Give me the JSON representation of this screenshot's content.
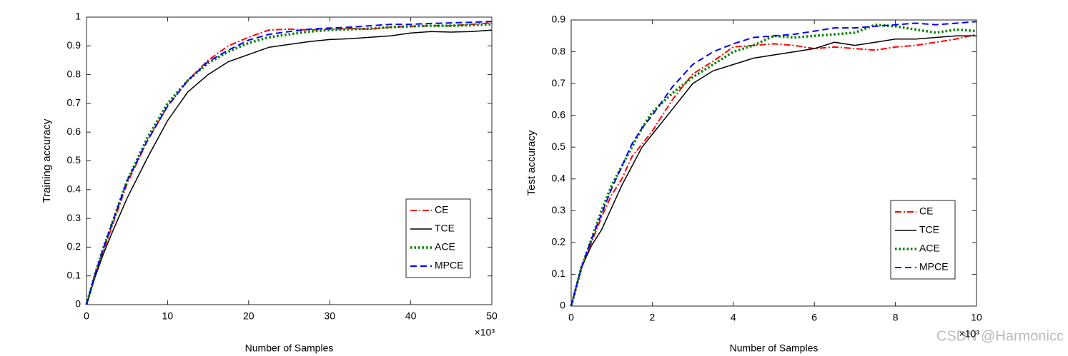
{
  "chart_data": [
    {
      "type": "line",
      "xlabel": "Number of Samples",
      "ylabel": "Training accuracy",
      "x_exponent_label": "×10³",
      "x": [
        0,
        1,
        2,
        3,
        5,
        7.5,
        10,
        12.5,
        15,
        17.5,
        20,
        22.5,
        25,
        27.5,
        30,
        32.5,
        35,
        37.5,
        40,
        42.5,
        45,
        47.5,
        50
      ],
      "xlim": [
        0,
        50
      ],
      "xticks": [
        0,
        10,
        20,
        30,
        40,
        50
      ],
      "ylim": [
        0,
        1
      ],
      "yticks": [
        0,
        0.1,
        0.2,
        0.3,
        0.4,
        0.5,
        0.6,
        0.7,
        0.8,
        0.9,
        1
      ],
      "legend": "lower right",
      "series": [
        {
          "name": "CE",
          "color": "#ff0000",
          "style": "dashdot",
          "values": [
            0,
            0.1,
            0.18,
            0.26,
            0.42,
            0.57,
            0.69,
            0.78,
            0.85,
            0.9,
            0.93,
            0.955,
            0.958,
            0.955,
            0.958,
            0.96,
            0.958,
            0.965,
            0.968,
            0.97,
            0.97,
            0.975,
            0.98
          ]
        },
        {
          "name": "TCE",
          "color": "#000000",
          "style": "solid",
          "values": [
            0,
            0.09,
            0.17,
            0.24,
            0.37,
            0.51,
            0.64,
            0.74,
            0.8,
            0.845,
            0.87,
            0.895,
            0.905,
            0.915,
            0.922,
            0.925,
            0.93,
            0.935,
            0.945,
            0.95,
            0.948,
            0.95,
            0.955
          ]
        },
        {
          "name": "ACE",
          "color": "#008000",
          "style": "dotted",
          "values": [
            0,
            0.1,
            0.19,
            0.27,
            0.43,
            0.58,
            0.7,
            0.78,
            0.84,
            0.88,
            0.91,
            0.93,
            0.94,
            0.95,
            0.955,
            0.958,
            0.96,
            0.965,
            0.968,
            0.97,
            0.97,
            0.972,
            0.975
          ]
        },
        {
          "name": "MPCE",
          "color": "#0000ff",
          "style": "dashed",
          "values": [
            0,
            0.1,
            0.19,
            0.27,
            0.43,
            0.57,
            0.69,
            0.78,
            0.845,
            0.885,
            0.92,
            0.94,
            0.95,
            0.958,
            0.962,
            0.965,
            0.97,
            0.975,
            0.975,
            0.978,
            0.98,
            0.982,
            0.985
          ]
        }
      ]
    },
    {
      "type": "line",
      "xlabel": "Number of Samples",
      "ylabel": "Test accuracy",
      "x_exponent_label": "×10³",
      "x": [
        0,
        0.25,
        0.5,
        0.75,
        1,
        1.25,
        1.5,
        1.75,
        2,
        2.5,
        3,
        3.5,
        4,
        4.5,
        5,
        5.5,
        6,
        6.5,
        7,
        7.5,
        8,
        8.5,
        9,
        9.5,
        10
      ],
      "xlim": [
        0,
        10
      ],
      "xticks": [
        0,
        2,
        4,
        6,
        8,
        10
      ],
      "ylim": [
        0,
        0.9
      ],
      "yticks": [
        0,
        0.1,
        0.2,
        0.3,
        0.4,
        0.5,
        0.6,
        0.7,
        0.8,
        0.9
      ],
      "legend": "lower right",
      "series": [
        {
          "name": "CE",
          "color": "#ff0000",
          "style": "dashdot",
          "values": [
            0,
            0.12,
            0.2,
            0.28,
            0.35,
            0.4,
            0.47,
            0.51,
            0.55,
            0.65,
            0.73,
            0.77,
            0.815,
            0.82,
            0.825,
            0.82,
            0.81,
            0.815,
            0.81,
            0.805,
            0.815,
            0.82,
            0.83,
            0.84,
            0.855
          ]
        },
        {
          "name": "TCE",
          "color": "#000000",
          "style": "solid",
          "values": [
            0,
            0.12,
            0.19,
            0.24,
            0.31,
            0.38,
            0.44,
            0.5,
            0.54,
            0.62,
            0.7,
            0.74,
            0.76,
            0.78,
            0.79,
            0.8,
            0.81,
            0.83,
            0.82,
            0.83,
            0.84,
            0.84,
            0.845,
            0.85,
            0.85
          ]
        },
        {
          "name": "ACE",
          "color": "#008000",
          "style": "dotted",
          "values": [
            0,
            0.12,
            0.21,
            0.3,
            0.38,
            0.44,
            0.5,
            0.56,
            0.61,
            0.67,
            0.72,
            0.76,
            0.8,
            0.82,
            0.85,
            0.845,
            0.85,
            0.855,
            0.86,
            0.885,
            0.88,
            0.87,
            0.86,
            0.87,
            0.865
          ]
        },
        {
          "name": "MPCE",
          "color": "#0000ff",
          "style": "dashed",
          "values": [
            0,
            0.12,
            0.21,
            0.29,
            0.37,
            0.44,
            0.51,
            0.56,
            0.6,
            0.69,
            0.76,
            0.8,
            0.825,
            0.845,
            0.85,
            0.855,
            0.865,
            0.875,
            0.875,
            0.88,
            0.885,
            0.89,
            0.885,
            0.89,
            0.895
          ]
        }
      ]
    }
  ],
  "watermark": "CSDN @Harmonicc"
}
